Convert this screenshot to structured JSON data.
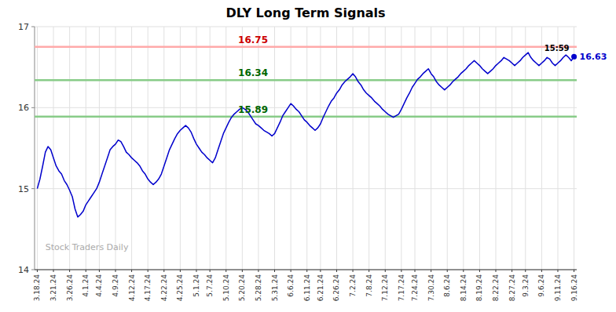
{
  "chart_data": {
    "type": "line",
    "title": "DLY Long Term Signals",
    "color": "#0000cc",
    "grid": true,
    "ylim": [
      14.0,
      17.0
    ],
    "yticks": [
      14,
      15,
      16,
      17
    ],
    "reference_lines": [
      {
        "value": 16.75,
        "label": "16.75",
        "color": "#ffaaaa",
        "label_color": "#cc0000"
      },
      {
        "value": 16.34,
        "label": "16.34",
        "color": "#88cc88",
        "label_color": "#006600"
      },
      {
        "value": 15.89,
        "label": "15.89",
        "color": "#88cc88",
        "label_color": "#006600"
      }
    ],
    "annotations": [
      {
        "text": "Stock Traders Daily"
      },
      {
        "text": "15:59"
      },
      {
        "text": "16.63",
        "value": 16.63
      }
    ],
    "categories": [
      "3.18.24",
      null,
      null,
      null,
      null,
      null,
      "3.21.24",
      null,
      null,
      null,
      null,
      null,
      "3.26.24",
      null,
      null,
      null,
      null,
      null,
      "4.1.24",
      null,
      null,
      null,
      null,
      "4.4.24",
      null,
      null,
      null,
      null,
      null,
      "4.9.24",
      null,
      null,
      null,
      null,
      null,
      "4.12.24",
      null,
      null,
      null,
      null,
      null,
      "4.17.24",
      null,
      null,
      null,
      null,
      null,
      "4.22.24",
      null,
      null,
      null,
      null,
      null,
      "4.25.24",
      null,
      null,
      null,
      null,
      null,
      "5.1.24",
      null,
      null,
      null,
      null,
      "5.7.24",
      null,
      null,
      null,
      null,
      null,
      "5.10.24",
      null,
      null,
      null,
      null,
      null,
      "5.20.24",
      null,
      null,
      null,
      null,
      null,
      "5.28.24",
      null,
      null,
      null,
      null,
      null,
      "5.31.24",
      null,
      null,
      null,
      null,
      null,
      "6.6.24",
      null,
      null,
      null,
      null,
      null,
      "6.11.24",
      null,
      null,
      null,
      null,
      "6.21.24",
      null,
      null,
      null,
      null,
      null,
      "6.26.24",
      null,
      null,
      null,
      null,
      null,
      "7.2.24",
      null,
      null,
      null,
      null,
      null,
      "7.8.24",
      null,
      null,
      null,
      null,
      null,
      "7.12.24",
      null,
      null,
      null,
      null,
      null,
      "7.17.24",
      null,
      null,
      null,
      null,
      "7.24.24",
      null,
      null,
      null,
      null,
      null,
      "7.30.24",
      null,
      null,
      null,
      null,
      null,
      "8.6.24",
      null,
      null,
      null,
      null,
      null,
      "8.14.24",
      null,
      null,
      null,
      null,
      null,
      "8.19.24",
      null,
      null,
      null,
      null,
      null,
      "8.22.24",
      null,
      null,
      null,
      null,
      null,
      "8.27.24",
      null,
      null,
      null,
      null,
      "9.3.24",
      null,
      null,
      null,
      null,
      null,
      "9.6.24",
      null,
      null,
      null,
      null,
      null,
      "9.11.24",
      null,
      null,
      null,
      null,
      null,
      "9.16.24"
    ],
    "values": [
      15.0,
      15.12,
      15.28,
      15.45,
      15.52,
      15.48,
      15.38,
      15.28,
      15.22,
      15.18,
      15.1,
      15.05,
      14.98,
      14.9,
      14.75,
      14.65,
      14.68,
      14.72,
      14.8,
      14.85,
      14.9,
      14.95,
      15.0,
      15.08,
      15.18,
      15.28,
      15.38,
      15.48,
      15.52,
      15.55,
      15.6,
      15.58,
      15.52,
      15.45,
      15.42,
      15.38,
      15.35,
      15.32,
      15.28,
      15.22,
      15.18,
      15.12,
      15.08,
      15.05,
      15.08,
      15.12,
      15.18,
      15.28,
      15.38,
      15.48,
      15.55,
      15.62,
      15.68,
      15.72,
      15.75,
      15.78,
      15.75,
      15.7,
      15.62,
      15.55,
      15.5,
      15.45,
      15.42,
      15.38,
      15.35,
      15.32,
      15.38,
      15.48,
      15.58,
      15.68,
      15.75,
      15.82,
      15.88,
      15.92,
      15.95,
      15.98,
      16.0,
      15.98,
      15.95,
      15.9,
      15.85,
      15.8,
      15.78,
      15.75,
      15.72,
      15.7,
      15.68,
      15.65,
      15.68,
      15.75,
      15.82,
      15.9,
      15.95,
      16.0,
      16.05,
      16.02,
      15.98,
      15.95,
      15.9,
      15.85,
      15.82,
      15.78,
      15.75,
      15.72,
      15.75,
      15.8,
      15.88,
      15.95,
      16.02,
      16.08,
      16.12,
      16.18,
      16.22,
      16.28,
      16.32,
      16.35,
      16.38,
      16.42,
      16.38,
      16.32,
      16.28,
      16.22,
      16.18,
      16.15,
      16.12,
      16.08,
      16.05,
      16.02,
      15.98,
      15.95,
      15.92,
      15.9,
      15.88,
      15.9,
      15.92,
      15.98,
      16.05,
      16.12,
      16.18,
      16.25,
      16.3,
      16.35,
      16.38,
      16.42,
      16.45,
      16.48,
      16.42,
      16.38,
      16.32,
      16.28,
      16.25,
      16.22,
      16.25,
      16.28,
      16.32,
      16.35,
      16.38,
      16.42,
      16.45,
      16.48,
      16.52,
      16.55,
      16.58,
      16.55,
      16.52,
      16.48,
      16.45,
      16.42,
      16.45,
      16.48,
      16.52,
      16.55,
      16.58,
      16.62,
      16.6,
      16.58,
      16.55,
      16.52,
      16.55,
      16.58,
      16.62,
      16.65,
      16.68,
      16.62,
      16.58,
      16.55,
      16.52,
      16.55,
      16.58,
      16.62,
      16.6,
      16.55,
      16.52,
      16.55,
      16.58,
      16.62,
      16.65,
      16.62,
      16.58,
      16.63
    ]
  }
}
